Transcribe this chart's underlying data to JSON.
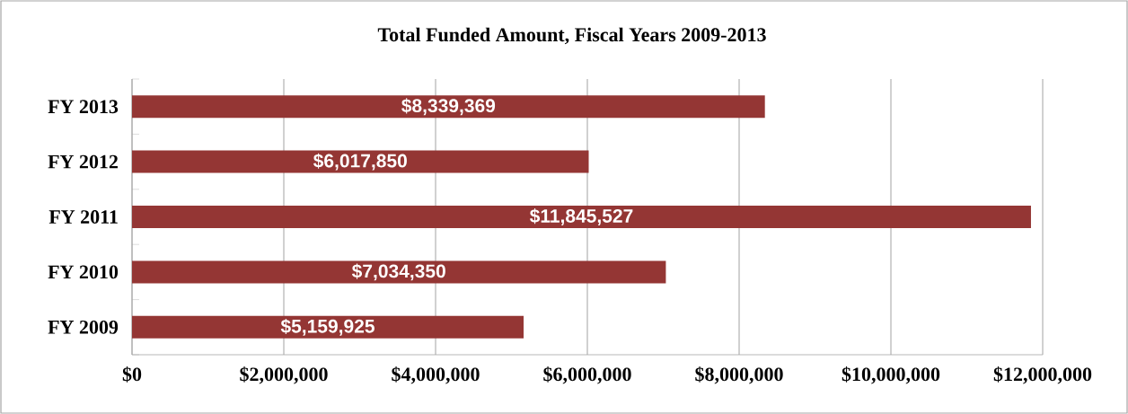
{
  "chart_data": {
    "type": "bar",
    "orientation": "horizontal",
    "title": "Total Funded Amount, Fiscal Years 2009-2013",
    "categories": [
      "FY 2013",
      "FY 2012",
      "FY 2011",
      "FY 2010",
      "FY 2009"
    ],
    "values": [
      8339369,
      6017850,
      11845527,
      7034350,
      5159925
    ],
    "value_labels": [
      "$8,339,369",
      "$6,017,850",
      "$11,845,527",
      "$7,034,350",
      "$5,159,925"
    ],
    "color": "#943634",
    "xlim": [
      0,
      12000000
    ],
    "xticks": [
      {
        "value": 0,
        "label": "$0"
      },
      {
        "value": 2000000,
        "label": "$2,000,000"
      },
      {
        "value": 4000000,
        "label": "$4,000,000"
      },
      {
        "value": 6000000,
        "label": "$6,000,000"
      },
      {
        "value": 8000000,
        "label": "$8,000,000"
      },
      {
        "value": 10000000,
        "label": "$10,000,000"
      },
      {
        "value": 12000000,
        "label": "$12,000,000"
      }
    ],
    "grid": "x"
  }
}
